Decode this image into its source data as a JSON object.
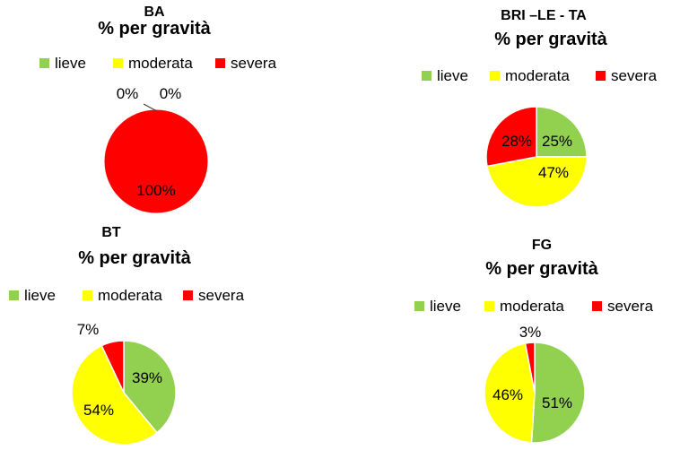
{
  "chart_data": [
    {
      "type": "pie",
      "region": "BA",
      "title": "% per gravità",
      "categories": [
        "lieve",
        "moderata",
        "severa"
      ],
      "values": [
        0,
        0,
        100
      ],
      "labels": [
        "0%",
        "0%",
        "100%"
      ],
      "colors": [
        "#92D050",
        "#FFFF00",
        "#FF0000"
      ],
      "legend": "top"
    },
    {
      "type": "pie",
      "region": "BRI –LE - TA",
      "title": "% per gravità",
      "categories": [
        "lieve",
        "moderata",
        "severa"
      ],
      "values": [
        25,
        47,
        28
      ],
      "labels": [
        "25%",
        "47%",
        "28%"
      ],
      "colors": [
        "#92D050",
        "#FFFF00",
        "#FF0000"
      ],
      "legend": "top"
    },
    {
      "type": "pie",
      "region": "BT",
      "title": "% per gravità",
      "categories": [
        "lieve",
        "moderata",
        "severa"
      ],
      "values": [
        39,
        54,
        7
      ],
      "labels": [
        "39%",
        "54%",
        "7%"
      ],
      "colors": [
        "#92D050",
        "#FFFF00",
        "#FF0000"
      ],
      "legend": "top"
    },
    {
      "type": "pie",
      "region": "FG",
      "title": "% per gravità",
      "categories": [
        "lieve",
        "moderata",
        "severa"
      ],
      "values": [
        51,
        46,
        3
      ],
      "labels": [
        "51%",
        "46%",
        "3%"
      ],
      "colors": [
        "#92D050",
        "#FFFF00",
        "#FF0000"
      ],
      "legend": "top"
    }
  ]
}
